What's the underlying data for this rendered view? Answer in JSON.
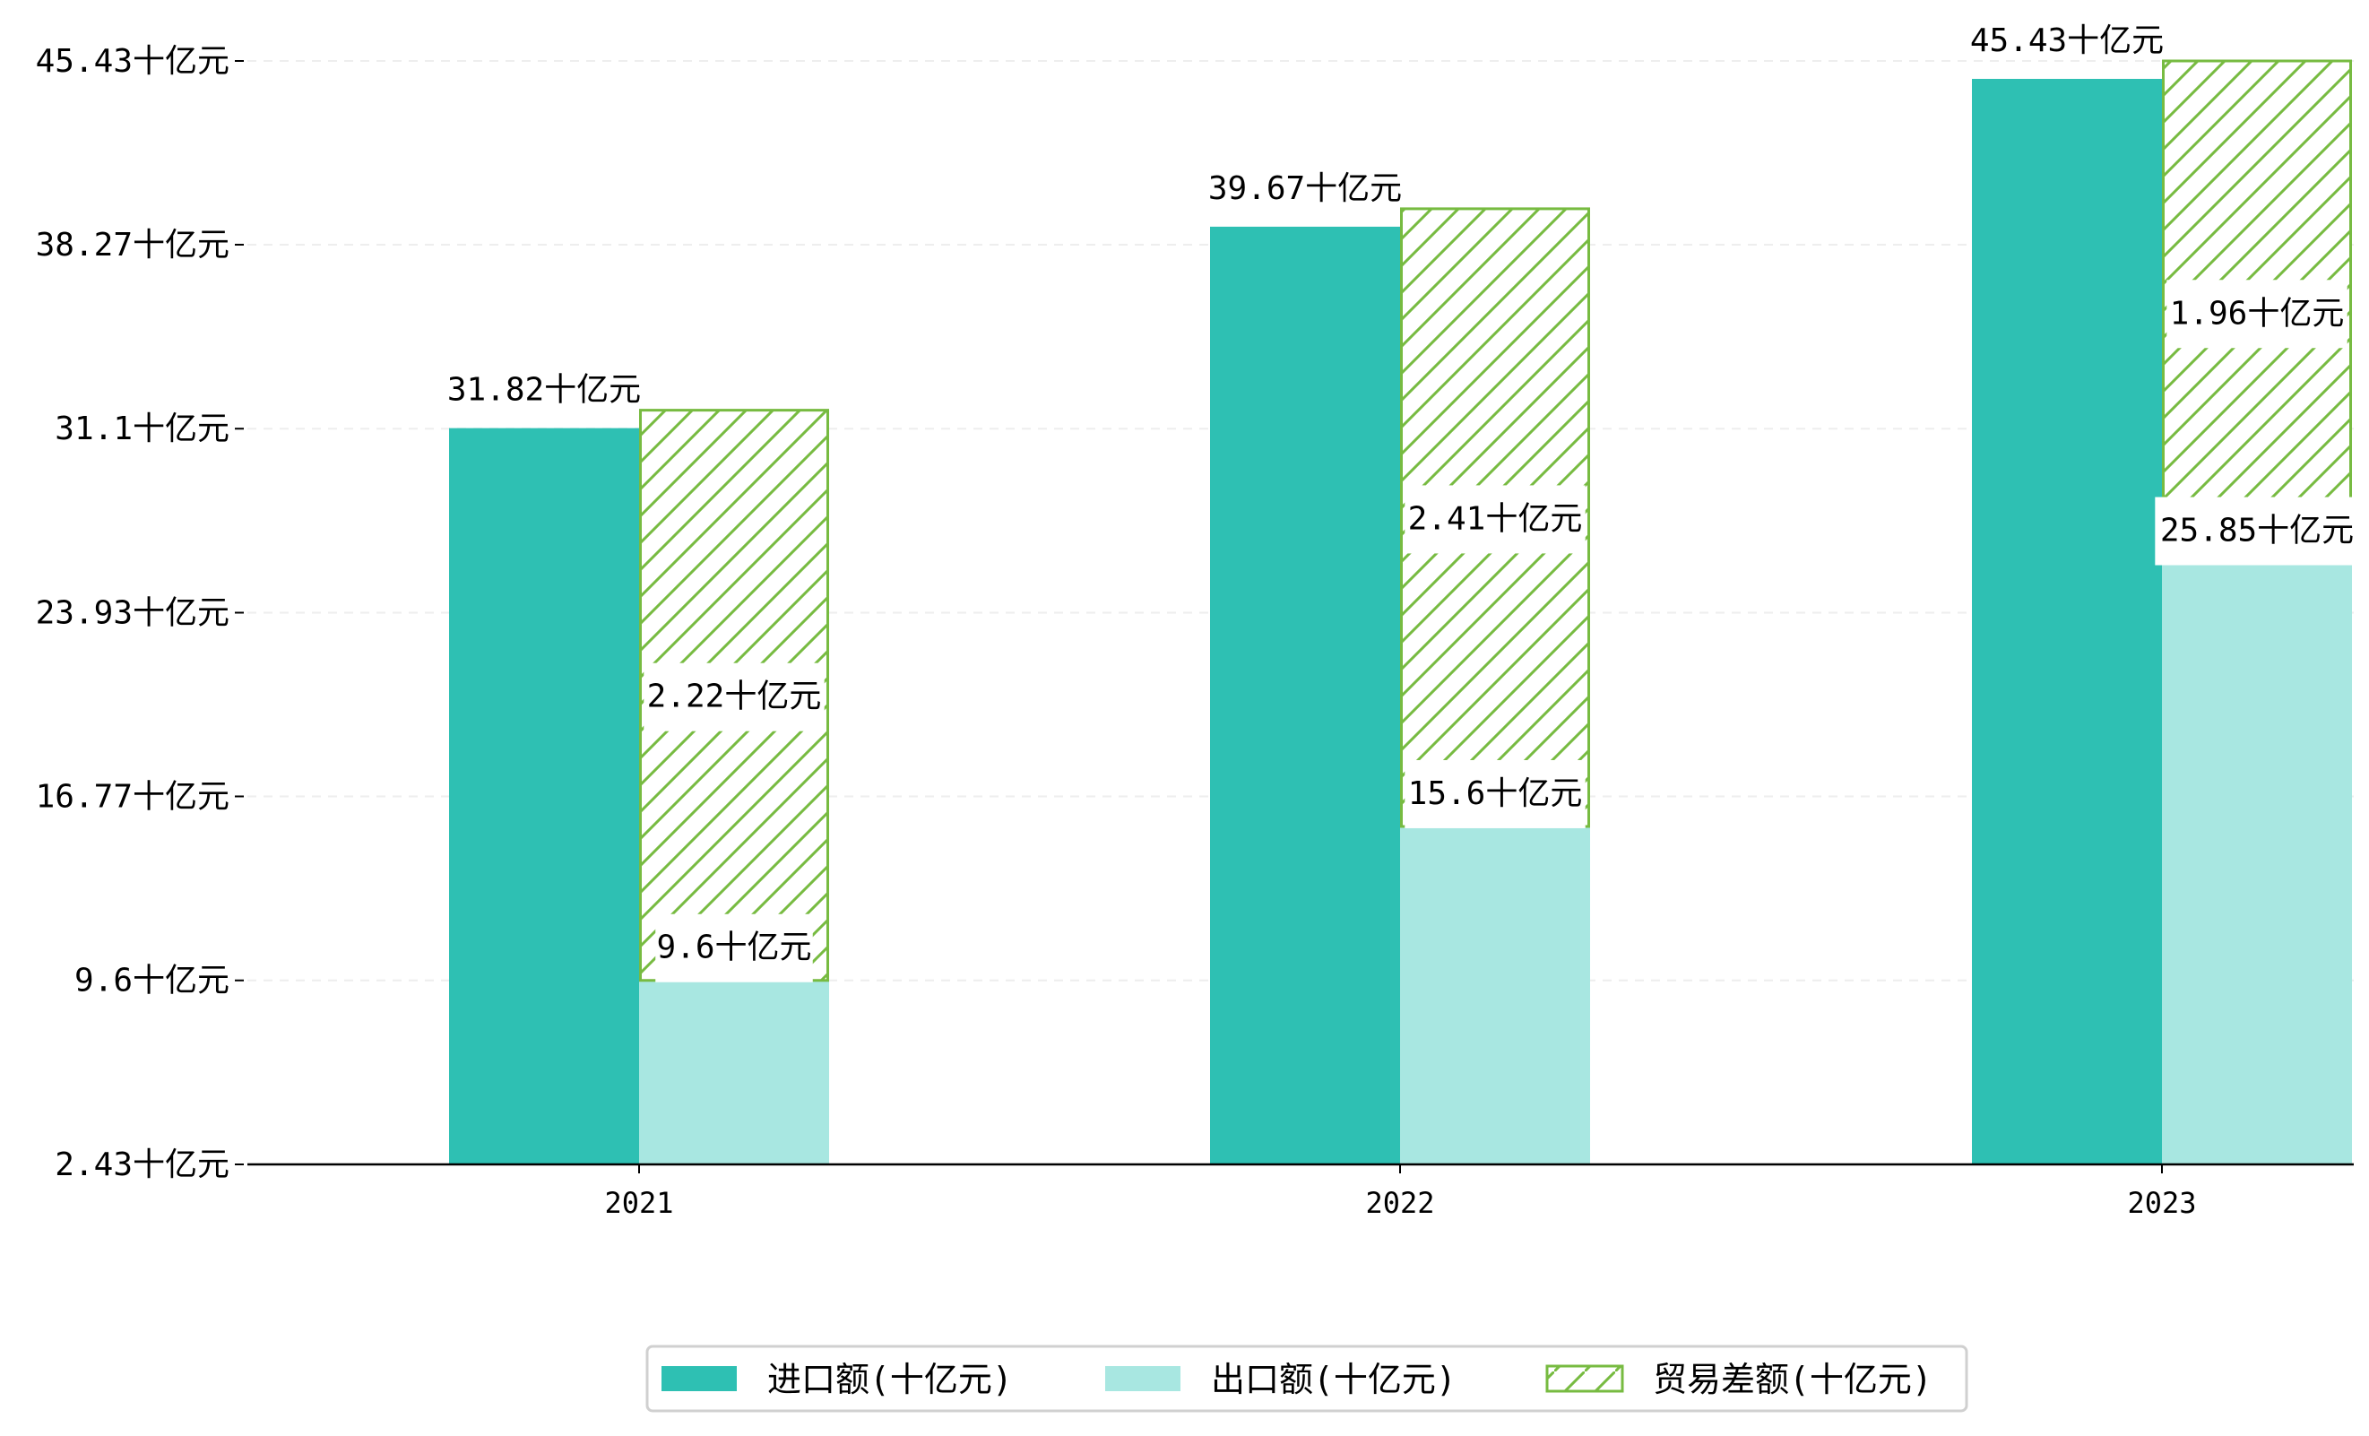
{
  "chart_data": {
    "type": "bar",
    "categories": [
      "2021",
      "2022",
      "2023"
    ],
    "series": [
      {
        "name": "进口额(十亿元)",
        "values": [
          31.82,
          39.67,
          45.43
        ],
        "color": "#2ec0b3"
      },
      {
        "name": "出口额(十亿元)",
        "values": [
          9.6,
          15.6,
          25.85
        ],
        "color": "#a8e7e1"
      },
      {
        "name": "贸易差额(十亿元)",
        "values": [
          2.22,
          2.41,
          1.96
        ],
        "color": "#77bb41",
        "style": "hatched"
      }
    ],
    "unit_suffix": "十亿元",
    "ylim": [
      2.43,
      45.43
    ],
    "yticks": [
      2.43,
      9.6,
      16.77,
      23.93,
      31.1,
      38.27,
      45.43
    ],
    "ytick_labels": [
      "2.43十亿元",
      "9.6十亿元",
      "16.77十亿元",
      "23.93十亿元",
      "31.1十亿元",
      "38.27十亿元",
      "45.43十亿元"
    ],
    "data_labels": {
      "import": [
        "31.82十亿元",
        "39.67十亿元",
        "45.43十亿元"
      ],
      "export": [
        "9.6十亿元",
        "15.6十亿元",
        "25.85十亿元"
      ],
      "balance": [
        "2.22十亿元",
        "2.41十亿元",
        "1.96十亿元"
      ]
    },
    "grid": "horizontal dashed",
    "legend": "bottom-center",
    "title": "",
    "xlabel": "",
    "ylabel": ""
  }
}
